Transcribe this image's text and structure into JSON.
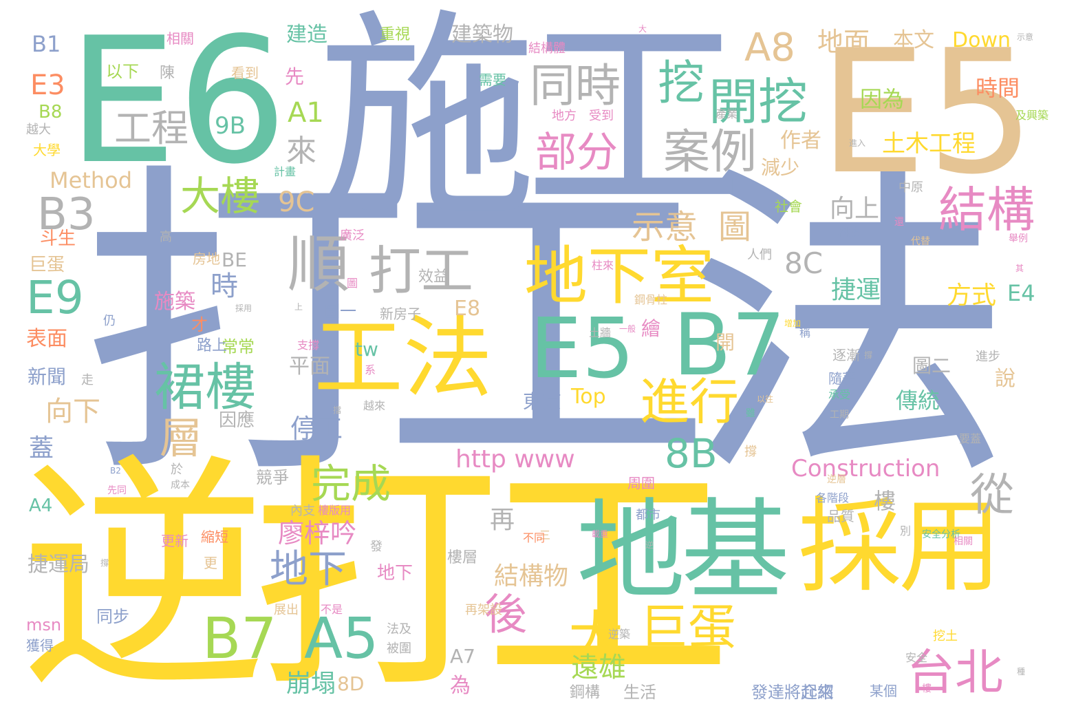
{
  "palette": {
    "green": "#66c2a5",
    "orange": "#fc8d62",
    "blue": "#8da0cb",
    "pink": "#e78ac3",
    "lime": "#a6d854",
    "yellow": "#ffd92f",
    "tan": "#e5c494",
    "gray": "#b3b3b3"
  },
  "words": {
    "w01": "打工法",
    "w02": "逆打工",
    "w03": "施工",
    "w04": "E6",
    "w05": "E5",
    "w06": "地基",
    "w07": "採用",
    "w08": "工法",
    "w09": "E5",
    "w10": "B7",
    "w11": "地下室",
    "w12": "順",
    "w13": "打工",
    "w14": "裙樓",
    "w15": "B7",
    "w16": "A5",
    "w17": "巨蛋",
    "w18": "大",
    "w19": "進行",
    "w20": "台北",
    "w21": "結構",
    "w22": "開挖",
    "w23": "挖",
    "w24": "案例",
    "w25": "同時",
    "w26": "A8",
    "w27": "部分",
    "w28": "大樓",
    "w29": "工程",
    "w30": "示意",
    "w31": "圖",
    "w32": "E9",
    "w33": "B3",
    "w34": "完成",
    "w35": "8B",
    "w36": "從",
    "w37": "後",
    "w38": "層",
    "w39": "地下",
    "w40": "地面",
    "w41": "土木工程",
    "w42": "時間",
    "w43": "因為",
    "w44": "Down",
    "w45": "本文",
    "w46": "建築物",
    "w47": "建造",
    "w48": "重視",
    "w49": "B1",
    "w50": "E3",
    "w51": "B8",
    "w52": "越大",
    "w53": "大學",
    "w54": "相關",
    "w55": "以下",
    "w56": "陳",
    "w57": "看到",
    "w58": "先",
    "w59": "9B",
    "w60": "A1",
    "w61": "來",
    "w62": "Method",
    "w63": "9C",
    "w64": "作者",
    "w65": "減少",
    "w66": "向上",
    "w67": "8C",
    "w68": "捷運",
    "w69": "方式",
    "w70": "E4",
    "w71": "BE",
    "w72": "時",
    "w73": "施築",
    "w74": "斗生",
    "w75": "巨蛋",
    "w76": "表面",
    "w77": "新聞",
    "w78": "向下",
    "w79": "蓋",
    "w80": "A4",
    "w81": "捷運局",
    "w82": "msn",
    "w83": "獲得",
    "w84": "同步",
    "w85": "http www",
    "w86": "Construction",
    "w87": "停工",
    "w88": "平面",
    "w89": "圖一",
    "w90": "新房子",
    "w91": "E8",
    "w92": "效益",
    "w93": "東京",
    "w94": "Top",
    "w95": "廖梓吟",
    "w96": "地下",
    "w97": "崩塌",
    "w98": "8D",
    "w99": "遠雄",
    "w100": "A7",
    "w101": "結構物",
    "w102": "再",
    "w103": "樓",
    "w104": "傳統",
    "w105": "圖二",
    "w106": "說",
    "w107": "為",
    "w108": "鋼構",
    "w109": "生活",
    "w110": "發達將介紹",
    "w111": "起來",
    "w112": "某個",
    "w113": "競爭",
    "w114": "樓層",
    "w115": "常常",
    "w116": "才",
    "w117": "路上",
    "w118": "走",
    "w119": "因應",
    "w120": "tw",
    "w121": "開",
    "w122": "繪",
    "w123": "逐漸",
    "w124": "隨著",
    "w125": "進步",
    "w126": "人們",
    "w127": "社會",
    "w128": "科技",
    "w129": "中原",
    "w130": "需要",
    "w131": "地方",
    "w132": "受到",
    "w133": "產業",
    "w134": "計畫",
    "w135": "結構體",
    "w136": "廣泛",
    "w137": "房地",
    "w138": "高",
    "w139": "仍",
    "w140": "稱",
    "w141": "承受",
    "w142": "工期",
    "w143": "各階段",
    "w144": "周圍",
    "w145": "都市",
    "w146": "品質",
    "w147": "要蓋",
    "w148": "縮短",
    "w149": "更新",
    "w150": "更",
    "w151": "展出",
    "w152": "不是",
    "w153": "再架設",
    "w154": "法及",
    "w155": "被圍",
    "w156": "逆築",
    "w157": "挖土",
    "w158": "安全",
    "w159": "於",
    "w160": "成本",
    "w161": "逆層",
    "w162": "樓版用",
    "w163": "內支",
    "w164": "發",
    "w165": "系",
    "w166": "土牆",
    "w167": "柱來",
    "w168": "支撐",
    "w169": "鋼骨柱",
    "w170": "越來",
    "w171": "別",
    "w172": "雖",
    "w173": "還",
    "w174": "舉例",
    "w175": "代替",
    "w176": "及興築",
    "w177": "大",
    "w178": "安全分析",
    "w179": "採用",
    "w180": "一般",
    "w181": "三",
    "w182": "撐",
    "w183": "逆",
    "w184": "不同",
    "w185": "擋",
    "w186": "上",
    "w187": "圖",
    "w188": "撐",
    "w189": "B2",
    "w190": "先同",
    "w191": "載重",
    "w192": "示意",
    "w193": "相關",
    "w194": "其",
    "w195": "種",
    "w196": "增加",
    "w197": "以往",
    "w198": "撐",
    "w199": "進入",
    "w200": "樓"
  }
}
